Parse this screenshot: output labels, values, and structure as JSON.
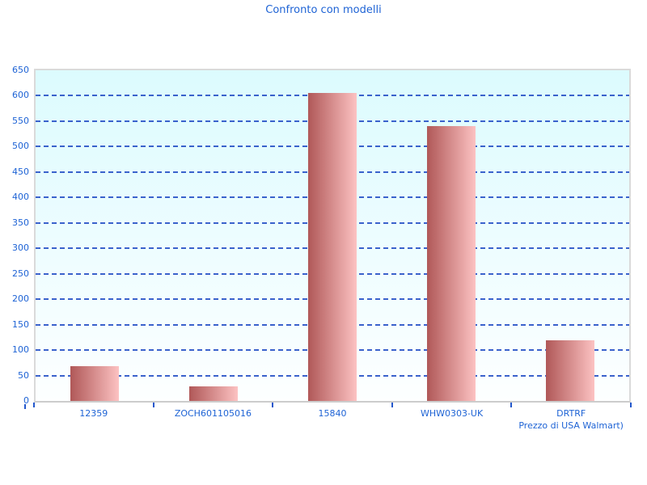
{
  "title": "Confronto con modelli",
  "style": {
    "text_color": "#1e63d5",
    "gridline_color": "#3a62cc",
    "tick_color": "#2257cc",
    "plot_bg_top": "#dcfbfe",
    "plot_bg_bottom": "#fdffff",
    "plot_border_color": "#d6d6d6",
    "bar_gradient_left": "#b05858",
    "bar_gradient_right": "#fcc2c2"
  },
  "chart_data": {
    "type": "bar",
    "title": "Confronto con modelli",
    "categories": [
      {
        "label": "12359",
        "sublabel": ""
      },
      {
        "label": "ZOCH601105016",
        "sublabel": ""
      },
      {
        "label": "15840",
        "sublabel": ""
      },
      {
        "label": "WHW0303-UK",
        "sublabel": ""
      },
      {
        "label": "DRTRF",
        "sublabel": "Prezzo di USA Walmart)"
      }
    ],
    "values": [
      68,
      28,
      605,
      540,
      120
    ],
    "xlabel": "",
    "ylabel": "",
    "ylim": [
      0,
      650
    ],
    "yticks": [
      0,
      50,
      100,
      150,
      200,
      250,
      300,
      350,
      400,
      450,
      500,
      550,
      600,
      650
    ],
    "grid": "horizontal-dashed",
    "legend": "none",
    "bar_color": "red-pink horizontal gradient"
  }
}
